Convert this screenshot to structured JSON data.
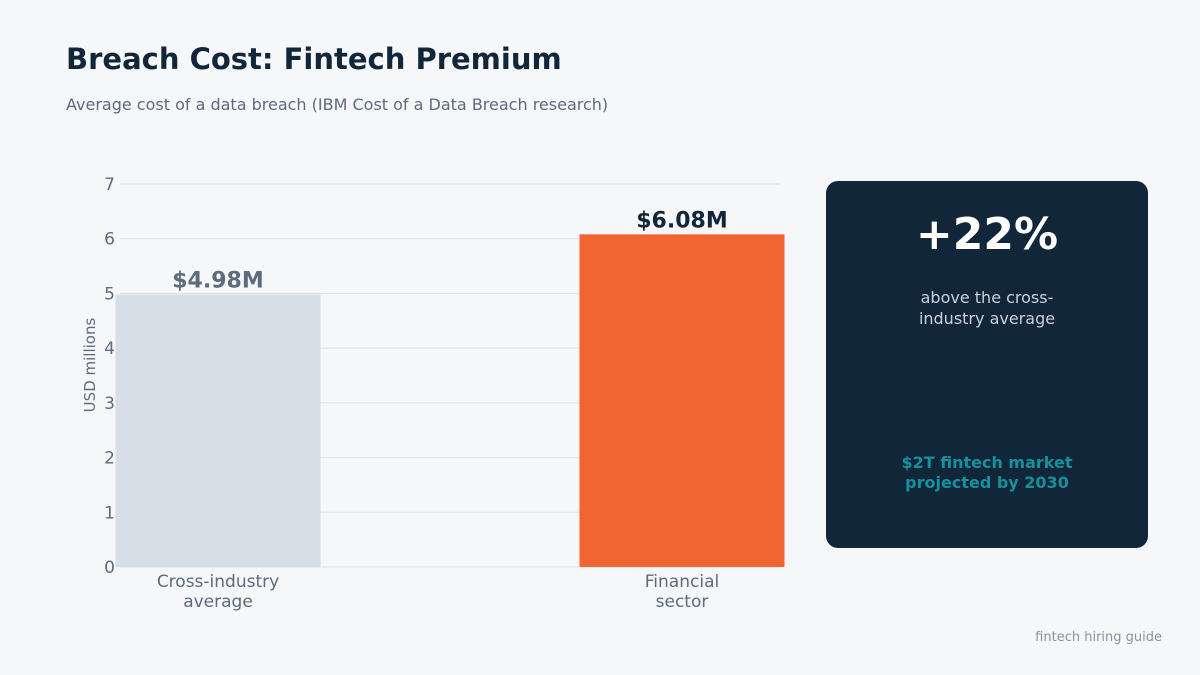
{
  "header": {
    "title": "Breach Cost: Fintech Premium",
    "subtitle": "Average cost of a data breach (IBM Cost of a Data Breach research)"
  },
  "chart_data": {
    "type": "bar",
    "categories": [
      [
        "Cross-industry",
        "average"
      ],
      [
        "Financial",
        "sector"
      ]
    ],
    "values": [
      4.98,
      6.08
    ],
    "value_labels": [
      "$4.98M",
      "$6.08M"
    ],
    "bar_colors": [
      "#d6dee7",
      "#f06632"
    ],
    "value_label_colors": [
      "#5c6b7e",
      "#12263a"
    ],
    "ylabel": "USD millions",
    "ylim": [
      0,
      7
    ],
    "yticks": [
      "0",
      "1",
      "2",
      "3",
      "4",
      "5",
      "6",
      "7"
    ],
    "grid": true
  },
  "callout": {
    "stat": "+22%",
    "description": "above the cross-industry average",
    "note": "$2T fintech market projected by 2030"
  },
  "footer": {
    "text": "fintech hiring guide"
  },
  "colors": {
    "card_bg": "#12263a",
    "accent": "#f06632",
    "teal": "#14919b"
  }
}
